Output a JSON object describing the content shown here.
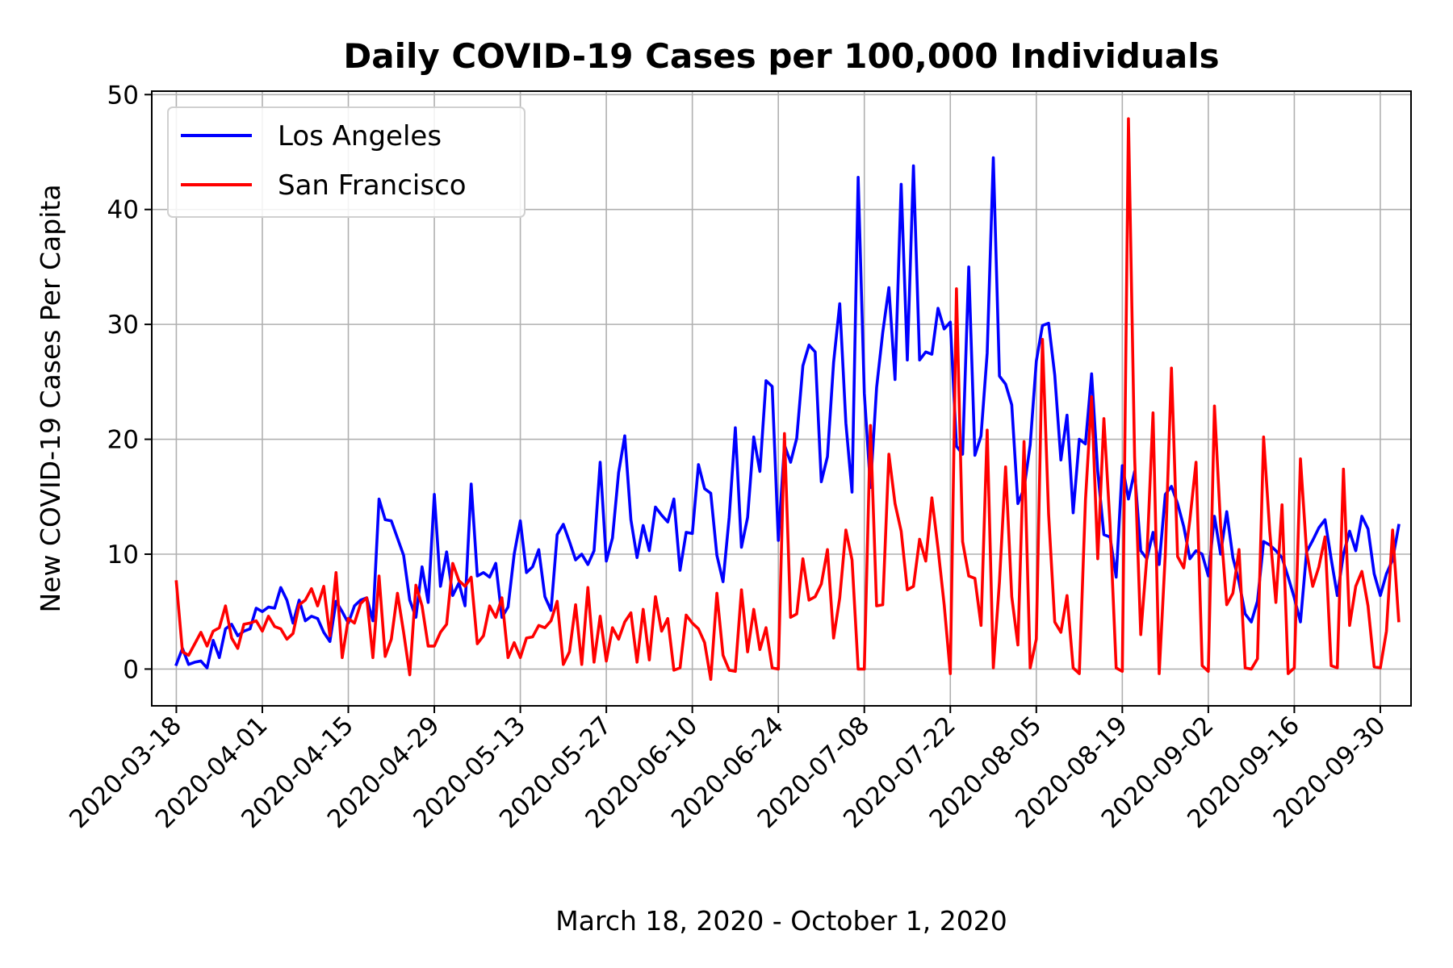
{
  "chart_data": {
    "type": "line",
    "title": "Daily COVID-19 Cases per 100,000 Individuals",
    "xlabel": "March 18, 2020 - October 1, 2020",
    "ylabel": "New COVID-19 Cases Per Capita",
    "x_start": "2020-03-18",
    "x_end": "2020-10-01",
    "xlim": [
      "2020-03-14",
      "2020-10-05"
    ],
    "ylim": [
      -3.2,
      50.3
    ],
    "x_ticks": [
      "2020-03-18",
      "2020-04-01",
      "2020-04-15",
      "2020-04-29",
      "2020-05-13",
      "2020-05-27",
      "2020-06-10",
      "2020-06-24",
      "2020-07-08",
      "2020-07-22",
      "2020-08-05",
      "2020-08-19",
      "2020-09-02",
      "2020-09-16",
      "2020-09-30"
    ],
    "y_ticks": [
      0,
      10,
      20,
      30,
      40,
      50
    ],
    "grid": true,
    "legend_position": "top-left",
    "series": [
      {
        "name": "Los Angeles",
        "color": "#0000ff",
        "values": [
          0.4,
          1.8,
          0.4,
          0.6,
          0.7,
          0.1,
          2.5,
          1.0,
          3.5,
          3.9,
          2.9,
          3.3,
          3.5,
          5.3,
          5.0,
          5.4,
          5.3,
          7.1,
          6.0,
          4.0,
          6.0,
          4.2,
          4.6,
          4.4,
          3.2,
          2.4,
          5.9,
          5.0,
          4.0,
          5.5,
          6.0,
          6.2,
          4.2,
          14.8,
          13.0,
          12.9,
          11.4,
          9.9,
          6.0,
          4.5,
          8.9,
          5.8,
          15.2,
          7.2,
          10.2,
          6.4,
          7.5,
          5.5,
          16.1,
          8.1,
          8.4,
          8.0,
          9.2,
          4.5,
          5.4,
          10.0,
          12.9,
          8.4,
          8.9,
          10.4,
          6.3,
          5.1,
          11.7,
          12.6,
          11.1,
          9.5,
          10.0,
          9.1,
          10.3,
          18.0,
          9.4,
          11.4,
          17.1,
          20.3,
          13.0,
          9.7,
          12.5,
          10.3,
          14.1,
          13.4,
          12.8,
          14.8,
          8.6,
          11.9,
          11.8,
          17.8,
          15.7,
          15.3,
          9.9,
          7.6,
          13.2,
          21.0,
          10.6,
          13.2,
          20.2,
          17.2,
          25.1,
          24.6,
          11.2,
          19.5,
          18.0,
          20.1,
          26.4,
          28.2,
          27.6,
          16.3,
          18.5,
          26.7,
          31.8,
          21.4,
          15.4,
          42.8,
          24.0,
          15.8,
          24.5,
          29.3,
          33.2,
          25.2,
          42.2,
          26.9,
          43.8,
          26.9,
          27.6,
          27.4,
          31.4,
          29.6,
          30.2,
          19.4,
          18.7,
          35.0,
          18.6,
          20.3,
          27.5,
          44.5,
          25.5,
          24.8,
          23.0,
          14.4,
          15.7,
          19.5,
          26.8,
          29.9,
          30.1,
          25.6,
          18.2,
          22.1,
          13.6,
          20.0,
          19.6,
          25.7,
          17.2,
          11.7,
          11.5,
          8.0,
          17.7,
          14.8,
          17.2,
          10.3,
          9.6,
          11.9,
          9.1,
          15.2,
          15.9,
          14.4,
          12.4,
          9.6,
          10.3,
          10.0,
          8.1,
          13.3,
          10.0,
          13.7,
          9.7,
          7.6,
          4.8,
          4.1,
          5.9,
          11.1,
          10.8,
          10.3,
          9.7,
          8.0,
          6.2,
          4.1,
          10.2,
          11.2,
          12.3,
          13.0,
          9.6,
          6.4,
          10.0,
          12.0,
          10.3,
          13.3,
          12.2,
          8.3,
          6.4,
          8.3,
          9.5,
          12.5
        ]
      },
      {
        "name": "San Francisco",
        "color": "#ff0000",
        "values": [
          7.6,
          1.5,
          1.2,
          2.2,
          3.2,
          2.0,
          3.3,
          3.6,
          5.5,
          2.7,
          1.8,
          3.9,
          4.0,
          4.2,
          3.3,
          4.6,
          3.7,
          3.5,
          2.6,
          3.1,
          5.6,
          6.0,
          7.0,
          5.5,
          7.2,
          2.9,
          8.4,
          1.0,
          4.4,
          4.0,
          5.7,
          6.2,
          1.0,
          8.1,
          1.1,
          2.6,
          6.6,
          3.2,
          -0.5,
          7.3,
          5.5,
          2.0,
          2.0,
          3.2,
          3.9,
          9.2,
          7.7,
          7.2,
          8.0,
          2.2,
          2.9,
          5.5,
          4.5,
          6.2,
          1.0,
          2.3,
          1.0,
          2.7,
          2.8,
          3.8,
          3.6,
          4.2,
          5.9,
          0.4,
          1.5,
          5.6,
          0.4,
          7.1,
          0.6,
          4.6,
          0.7,
          3.6,
          2.6,
          4.1,
          4.9,
          0.6,
          5.2,
          0.8,
          6.3,
          3.3,
          4.4,
          -0.1,
          0.1,
          4.7,
          4.0,
          3.5,
          2.3,
          -0.9,
          6.6,
          1.2,
          -0.1,
          -0.2,
          6.9,
          1.5,
          5.2,
          1.7,
          3.6,
          0.1,
          0.0,
          20.5,
          4.5,
          4.8,
          9.6,
          6.0,
          6.3,
          7.4,
          10.4,
          2.7,
          6.2,
          12.1,
          9.5,
          0.0,
          0.0,
          21.2,
          5.5,
          5.6,
          18.7,
          14.4,
          12.0,
          6.9,
          7.2,
          11.3,
          9.4,
          14.9,
          10.5,
          5.6,
          -0.4,
          33.1,
          11.1,
          8.1,
          7.9,
          3.8,
          20.8,
          0.1,
          7.6,
          17.6,
          6.3,
          2.1,
          19.8,
          0.1,
          2.6,
          28.7,
          13.5,
          4.1,
          3.2,
          6.4,
          0.1,
          -0.4,
          14.7,
          23.7,
          9.6,
          21.8,
          12.6,
          0.1,
          -0.2,
          47.9,
          18.5,
          3.0,
          9.8,
          22.3,
          -0.4,
          10.0,
          26.2,
          9.8,
          8.8,
          13.0,
          18.0,
          0.3,
          -0.2,
          22.9,
          12.5,
          5.6,
          6.6,
          10.4,
          0.1,
          0.0,
          0.9,
          20.2,
          12.0,
          5.8,
          14.3,
          -0.4,
          0.1,
          18.3,
          10.2,
          7.2,
          8.9,
          11.5,
          0.3,
          0.1,
          17.4,
          3.8,
          7.2,
          8.5,
          5.5,
          0.2,
          0.1,
          3.3,
          12.1,
          4.2
        ]
      }
    ]
  }
}
